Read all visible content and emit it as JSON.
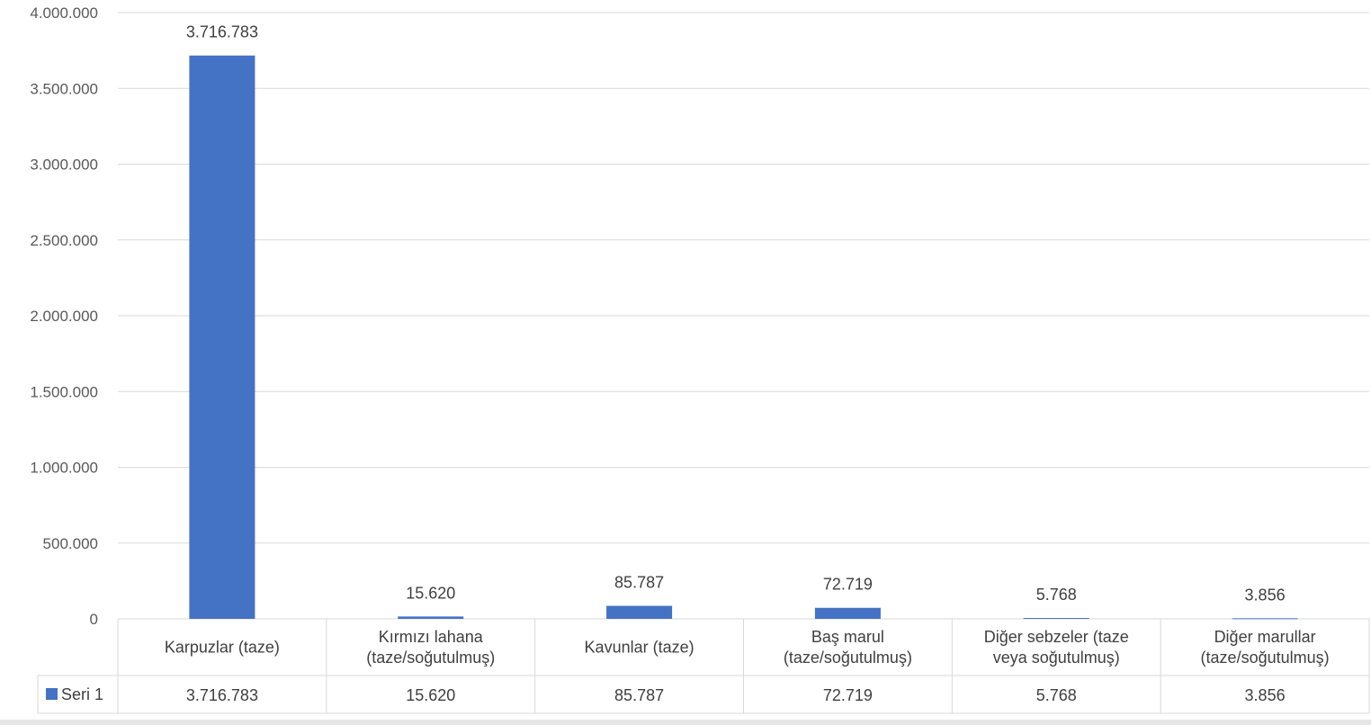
{
  "chart_data": {
    "type": "bar",
    "categories": [
      [
        "Karpuzlar (taze)"
      ],
      [
        "Kırmızı lahana",
        "(taze/soğutulmuş)"
      ],
      [
        "Kavunlar (taze)"
      ],
      [
        "Baş marul",
        "(taze/soğutulmuş)"
      ],
      [
        "Diğer sebzeler (taze",
        "veya soğutulmuş)"
      ],
      [
        "Diğer marullar",
        "(taze/soğutulmuş)"
      ]
    ],
    "series": [
      {
        "name": "Seri 1",
        "color": "#4472c4",
        "values": [
          3716783,
          15620,
          85787,
          72719,
          5768,
          3856
        ],
        "labels": [
          "3.716.783",
          "15.620",
          "85.787",
          "72.719",
          "5.768",
          "3.856"
        ]
      }
    ],
    "y_ticks": [
      0,
      500000,
      1000000,
      1500000,
      2000000,
      2500000,
      3000000,
      3500000,
      4000000
    ],
    "y_tick_labels": [
      "0",
      "500.000",
      "1.000.000",
      "1.500.000",
      "2.000.000",
      "2.500.000",
      "3.000.000",
      "3.500.000",
      "4.000.000"
    ],
    "ylim": [
      0,
      4000000
    ],
    "grid": true,
    "legend": "data-table"
  }
}
